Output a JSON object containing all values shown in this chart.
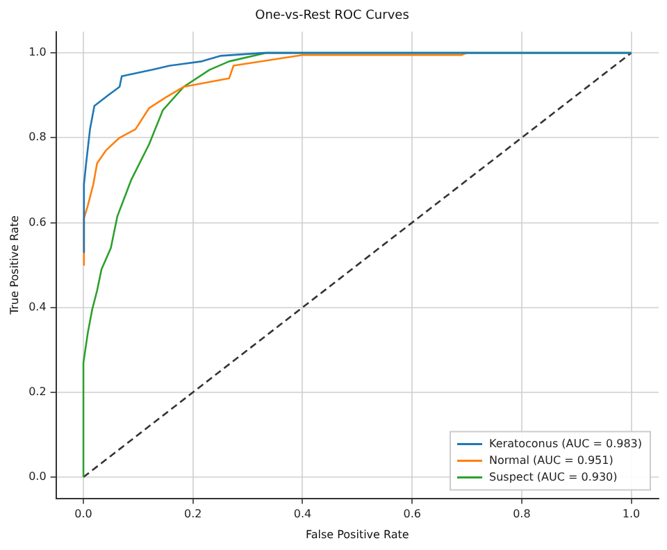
{
  "chart_data": {
    "type": "line",
    "title": "One-vs-Rest ROC Curves",
    "xlabel": "False Positive Rate",
    "ylabel": "True Positive Rate",
    "xlim": [
      -0.05,
      1.05
    ],
    "ylim": [
      -0.05,
      1.05
    ],
    "xticks": [
      {
        "value": 0,
        "label": "0.0"
      },
      0.2,
      0.4,
      0.6,
      0.8,
      {
        "value": 1,
        "label": "1.0"
      }
    ],
    "yticks": [
      {
        "value": 0,
        "label": "0.0"
      },
      0.2,
      0.4,
      0.6,
      0.8,
      {
        "value": 1,
        "label": "1.0"
      }
    ],
    "grid": true,
    "legend": "bottom right",
    "marker": "none",
    "series": [
      {
        "name": "Keratoconus (AUC = 0.983)",
        "color": "#1f77b4",
        "x": [
          0,
          0.001,
          0.005,
          0.012,
          0.02,
          0.045,
          0.066,
          0.07,
          0.125,
          0.158,
          0.216,
          0.25,
          0.33,
          1
        ],
        "values": [
          0.53,
          0.69,
          0.74,
          0.82,
          0.875,
          0.9,
          0.92,
          0.945,
          0.96,
          0.97,
          0.98,
          0.993,
          1,
          1
        ]
      },
      {
        "name": "Normal (AUC = 0.951)",
        "color": "#ff7f0e",
        "x": [
          0,
          0.001,
          0.008,
          0.018,
          0.025,
          0.041,
          0.066,
          0.095,
          0.12,
          0.15,
          0.183,
          0.266,
          0.274,
          0.375,
          0.4,
          0.69,
          0.7
        ],
        "values": [
          0.5,
          0.61,
          0.64,
          0.69,
          0.74,
          0.77,
          0.8,
          0.82,
          0.87,
          0.895,
          0.92,
          0.94,
          0.97,
          0.99,
          0.995,
          0.995,
          1
        ]
      },
      {
        "name": "Suspect (AUC = 0.930)",
        "color": "#2ca02c",
        "x": [
          0,
          0,
          0.008,
          0.016,
          0.025,
          0.033,
          0.05,
          0.062,
          0.087,
          0.12,
          0.145,
          0.183,
          0.23,
          0.266,
          0.333,
          1
        ],
        "values": [
          0,
          0.27,
          0.34,
          0.395,
          0.44,
          0.49,
          0.54,
          0.615,
          0.7,
          0.785,
          0.865,
          0.92,
          0.96,
          0.98,
          1,
          1
        ]
      },
      {
        "color": "#333333",
        "line_style": "dashed",
        "x": [
          0,
          1
        ],
        "values": [
          0,
          1
        ]
      }
    ]
  }
}
